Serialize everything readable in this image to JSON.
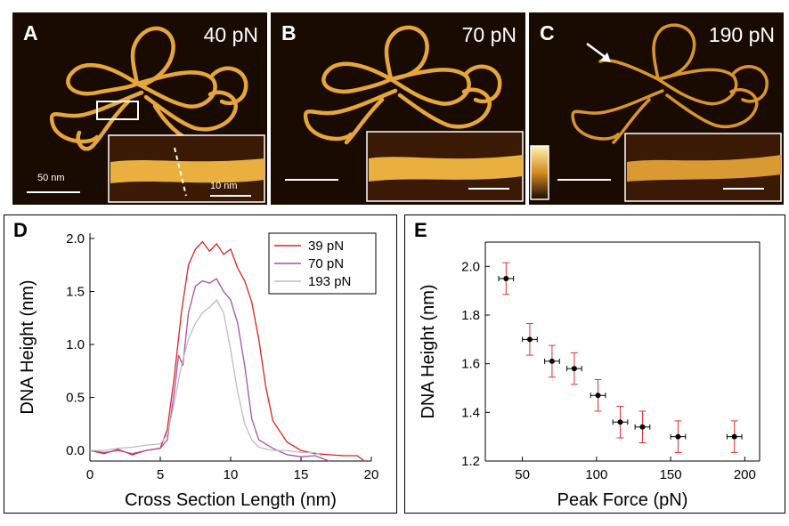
{
  "panels": [
    {
      "letter": "A",
      "force": "40 pN",
      "scale_main": "50 nm",
      "scale_inset": "10 nm"
    },
    {
      "letter": "B",
      "force": "70 pN"
    },
    {
      "letter": "C",
      "force": "190 pN"
    }
  ],
  "colors": {
    "dna": "#e6a63a",
    "bg": "#1a0b02",
    "red": "#e0201f",
    "purple": "#a64fb0",
    "gray": "#bdbdbd",
    "errorbar": "#e03030"
  },
  "chart_data": [
    {
      "panel": "D",
      "type": "line",
      "xlabel": "Cross Section Length (nm)",
      "ylabel": "DNA Height (nm)",
      "xlim": [
        0,
        20
      ],
      "ylim": [
        -0.1,
        2.05
      ],
      "xticks": [
        0,
        5,
        10,
        15,
        20
      ],
      "yticks": [
        0.0,
        0.5,
        1.0,
        1.5,
        2.0
      ],
      "legend_position": "top-right",
      "series": [
        {
          "name": "39 pN",
          "color": "#e0201f",
          "x": [
            0,
            1,
            2,
            3,
            4,
            5,
            5.5,
            6,
            6.5,
            7,
            7.5,
            8,
            8.5,
            9,
            9.5,
            10,
            10.5,
            11,
            11.5,
            12,
            12.5,
            13,
            14,
            15,
            16,
            17,
            18,
            19,
            19.5
          ],
          "y": [
            0.0,
            -0.03,
            0.01,
            -0.04,
            0.0,
            0.02,
            0.2,
            0.7,
            1.3,
            1.75,
            1.9,
            1.97,
            1.88,
            1.95,
            1.85,
            1.9,
            1.72,
            1.6,
            1.4,
            1.05,
            0.6,
            0.28,
            0.08,
            0.0,
            -0.03,
            -0.04,
            -0.05,
            -0.05,
            -0.1
          ]
        },
        {
          "name": "70 pN",
          "color": "#a64fb0",
          "x": [
            0,
            1,
            2,
            3,
            4,
            5,
            5.5,
            6,
            6.3,
            6.6,
            7,
            7.5,
            8,
            8.5,
            9,
            9.5,
            10,
            10.5,
            11,
            11.5,
            12,
            13,
            14,
            15,
            16,
            17
          ],
          "y": [
            0.0,
            -0.02,
            0.0,
            -0.03,
            0.0,
            0.02,
            0.1,
            0.55,
            0.9,
            0.8,
            1.3,
            1.55,
            1.6,
            1.58,
            1.62,
            1.5,
            1.42,
            1.2,
            0.8,
            0.3,
            0.1,
            0.02,
            -0.04,
            -0.06,
            -0.05,
            -0.1
          ]
        },
        {
          "name": "193 pN",
          "color": "#bdbdbd",
          "x": [
            0,
            1,
            2,
            3,
            4,
            5,
            5.5,
            6,
            6.5,
            7,
            7.5,
            8,
            8.5,
            9,
            9.5,
            10,
            10.5,
            11,
            11.5,
            12,
            13,
            14,
            15,
            16,
            16.5
          ],
          "y": [
            0.0,
            0.0,
            0.02,
            0.03,
            0.05,
            0.06,
            0.15,
            0.45,
            0.8,
            1.05,
            1.2,
            1.3,
            1.35,
            1.42,
            1.3,
            0.95,
            0.55,
            0.25,
            0.1,
            0.03,
            0.0,
            0.0,
            -0.02,
            -0.02,
            -0.05
          ]
        }
      ]
    },
    {
      "panel": "E",
      "type": "scatter",
      "xlabel": "Peak Force (pN)",
      "ylabel": "DNA Height (nm)",
      "xlim": [
        25,
        210
      ],
      "ylim": [
        1.2,
        2.1
      ],
      "xticks": [
        50,
        100,
        150,
        200
      ],
      "yticks": [
        1.2,
        1.4,
        1.6,
        1.8,
        2.0
      ],
      "x": [
        39,
        55,
        70,
        85,
        101,
        116,
        131,
        155,
        193
      ],
      "y": [
        1.95,
        1.7,
        1.61,
        1.58,
        1.47,
        1.36,
        1.34,
        1.3,
        1.3
      ],
      "xerr": 5,
      "yerr": 0.065
    }
  ]
}
